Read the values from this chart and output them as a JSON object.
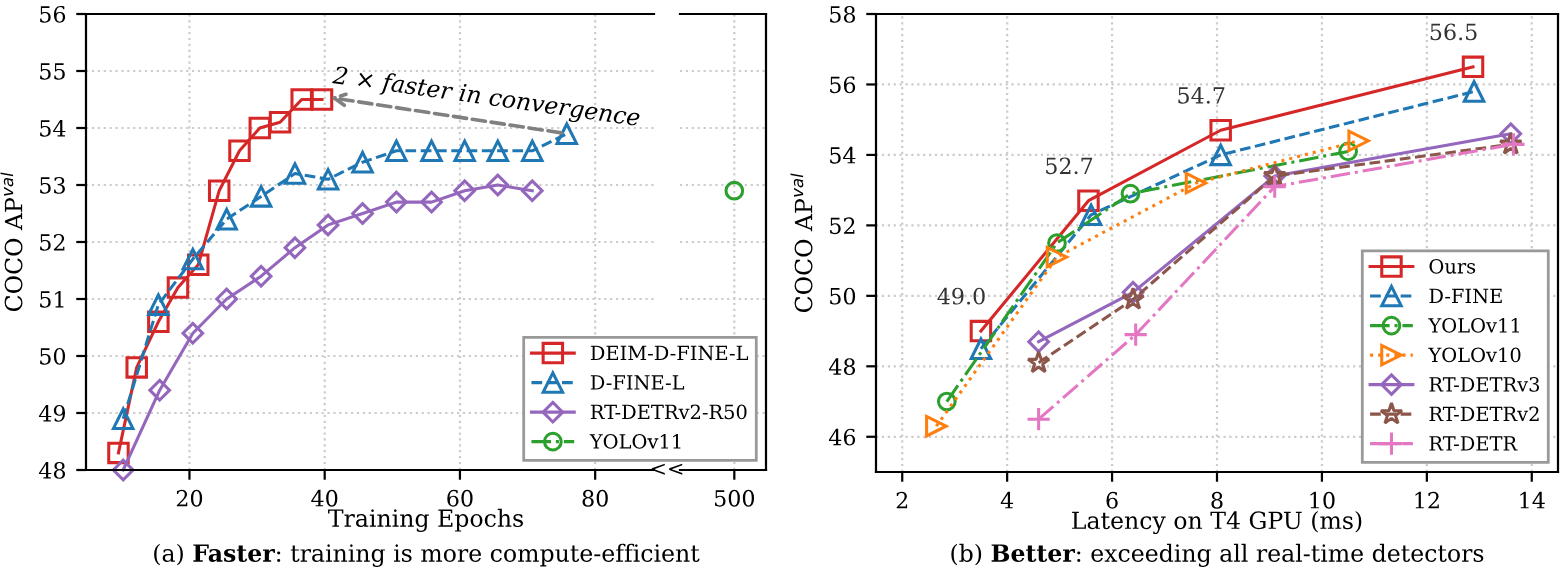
{
  "chart_data": [
    {
      "type": "line",
      "title": "(a) Faster: training is more compute-efficient",
      "xlabel": "Training Epochs",
      "ylabel": "COCO AP$^{val}$",
      "xlim": [
        4.7,
        88.7
      ],
      "ylim": [
        48,
        56
      ],
      "xticks": [
        20,
        40,
        60,
        80
      ],
      "yticks": [
        48,
        49,
        50,
        51,
        52,
        53,
        54,
        55,
        56
      ],
      "grid": true,
      "legend": "bottom right",
      "annotations": [
        {
          "text": "2 × faster in convergence",
          "x": 40,
          "y": 54.55
        },
        "<<"
      ],
      "series": [
        {
          "name": "DEIM-D-FINE-L",
          "color": "#d62728",
          "marker": "square",
          "line_style": "solid",
          "x": [
            9.5,
            12.2,
            15.4,
            18.3,
            21.3,
            24.4,
            27.4,
            30.4,
            33.4,
            36.6,
            39.6
          ],
          "values": [
            48.3,
            49.8,
            50.6,
            51.2,
            51.6,
            52.9,
            53.6,
            54.0,
            54.1,
            54.5,
            54.5
          ]
        },
        {
          "name": "D-FINE-L",
          "color": "#1f77b4",
          "marker": "triangle",
          "line_style": "dashed",
          "x": [
            10.2,
            15.4,
            20.5,
            25.5,
            30.6,
            35.6,
            40.5,
            45.6,
            50.6,
            55.8,
            60.7,
            65.6,
            70.7,
            75.8
          ],
          "values": [
            48.9,
            50.9,
            51.7,
            52.4,
            52.8,
            53.2,
            53.1,
            53.4,
            53.6,
            53.6,
            53.6,
            53.6,
            53.6,
            53.9
          ]
        },
        {
          "name": "RT-DETRv2-R50",
          "color": "#9467bd",
          "marker": "diamond",
          "line_style": "solid",
          "x": [
            10.2,
            15.6,
            20.5,
            25.5,
            30.6,
            35.6,
            40.5,
            45.6,
            50.6,
            55.8,
            60.7,
            65.6,
            70.7
          ],
          "values": [
            48.0,
            49.4,
            50.4,
            51.0,
            51.4,
            51.9,
            52.3,
            52.5,
            52.7,
            52.7,
            52.9,
            53.0,
            52.9
          ]
        }
      ]
    },
    {
      "type": "line",
      "categories": [
        "500"
      ],
      "ylim": [
        48,
        56
      ],
      "yticks": [
        48,
        49,
        50,
        51,
        52,
        53,
        54,
        55,
        56
      ],
      "tick_labels": "x",
      "grid": true,
      "series": [
        {
          "name": "YOLOv11",
          "color": "#2ca02c",
          "marker": "circle",
          "line_style": "dashdot",
          "values": [
            52.9
          ]
        }
      ]
    },
    {
      "type": "line",
      "title": "(b) Better: exceeding all real-time detectors",
      "xlabel": "Latency on T4 GPU (ms)",
      "ylabel": "COCO AP$^{val}$",
      "xlim": [
        1.5,
        14.5
      ],
      "ylim": [
        45,
        58
      ],
      "xticks": [
        2,
        4,
        6,
        8,
        10,
        12,
        14
      ],
      "yticks": [
        46,
        48,
        50,
        52,
        54,
        56,
        58
      ],
      "grid": true,
      "legend": "bottom right",
      "series": [
        {
          "name": "Ours",
          "color": "#d62728",
          "marker": "square",
          "line_style": "solid",
          "x": [
            3.5,
            5.55,
            8.07,
            12.88
          ],
          "values": [
            49.0,
            52.7,
            54.7,
            56.5
          ],
          "value_labels": [
            "49.0",
            "52.7",
            "54.7",
            "56.5"
          ]
        },
        {
          "name": "D-FINE",
          "color": "#1f77b4",
          "marker": "triangle",
          "line_style": "dashed",
          "x": [
            3.5,
            5.6,
            8.07,
            12.9
          ],
          "values": [
            48.5,
            52.3,
            54.0,
            55.8
          ]
        },
        {
          "name": "YOLOv11",
          "color": "#2ca02c",
          "marker": "circle",
          "line_style": "dashdot",
          "x": [
            2.85,
            4.95,
            6.35,
            10.5
          ],
          "values": [
            47.0,
            51.5,
            52.9,
            54.1
          ]
        },
        {
          "name": "YOLOv10",
          "color": "#ff7f0e",
          "marker": "triangle_right",
          "line_style": "dotted",
          "x": [
            2.65,
            4.95,
            7.6,
            10.7
          ],
          "values": [
            46.3,
            51.1,
            53.2,
            54.4
          ]
        },
        {
          "name": "RT-DETRv3",
          "color": "#9467bd",
          "marker": "diamond",
          "line_style": "solid",
          "x": [
            4.6,
            6.4,
            9.1,
            13.6
          ],
          "values": [
            48.7,
            50.1,
            53.4,
            54.6
          ]
        },
        {
          "name": "RT-DETRv2",
          "color": "#8c564b",
          "marker": "star",
          "line_style": "dashed",
          "x": [
            4.6,
            6.4,
            9.1,
            13.6
          ],
          "values": [
            48.1,
            49.9,
            53.4,
            54.3
          ]
        },
        {
          "name": "RT-DETR",
          "color": "#e377c2",
          "marker": "plus",
          "line_style": "dashdot",
          "x": [
            4.6,
            6.45,
            9.1,
            13.65
          ],
          "values": [
            46.5,
            48.9,
            53.1,
            54.3
          ]
        }
      ]
    }
  ]
}
